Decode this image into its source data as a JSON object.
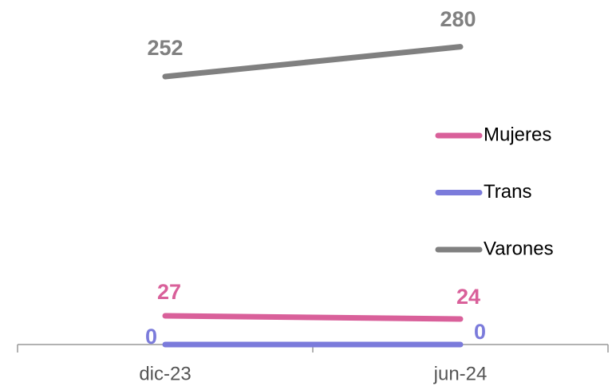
{
  "chart_data": {
    "type": "line",
    "categories": [
      "dic-23",
      "jun-24"
    ],
    "series": [
      {
        "name": "Mujeres",
        "color": "#d9609a",
        "values": [
          27,
          24
        ]
      },
      {
        "name": "Trans",
        "color": "#7b7bdb",
        "values": [
          0,
          0
        ]
      },
      {
        "name": "Varones",
        "color": "#808080",
        "values": [
          252,
          280
        ]
      }
    ],
    "ylim": [
      0,
      300
    ],
    "legend": "right"
  }
}
